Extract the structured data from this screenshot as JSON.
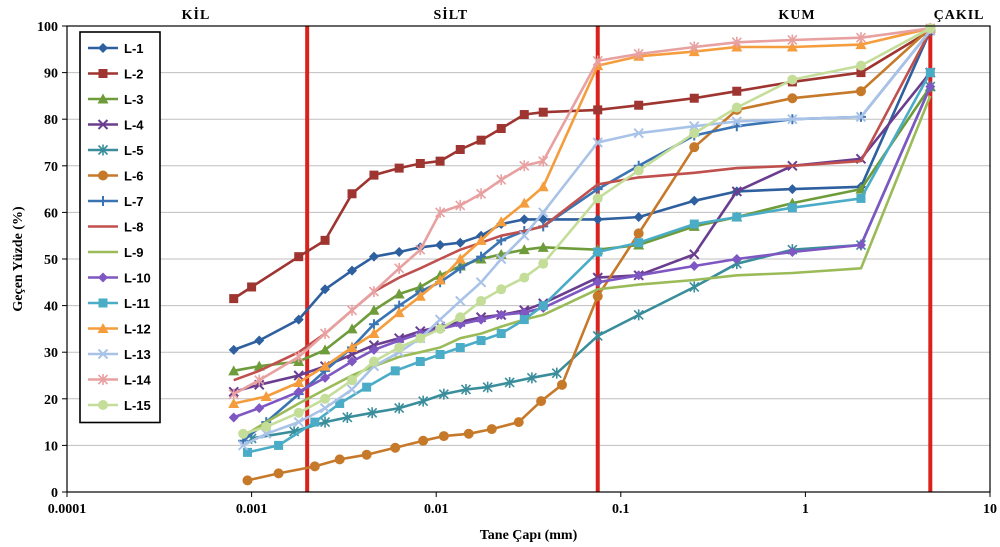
{
  "chart_data": {
    "type": "line",
    "x_scale": "log",
    "xlabel": "Tane Çapı (mm)",
    "ylabel": "Geçen Yüzde (%)",
    "xlim": [
      0.0001,
      10
    ],
    "ylim": [
      0,
      100
    ],
    "x_ticks": [
      "0.0001",
      "0.001",
      "0.01",
      "0.1",
      "1",
      "10"
    ],
    "y_ticks": [
      "0",
      "10",
      "20",
      "30",
      "40",
      "50",
      "60",
      "70",
      "80",
      "90",
      "100"
    ],
    "grid": "horizontal",
    "legend_position": "top-left",
    "zones": [
      {
        "label": "KİL",
        "x_label_pos": 0.0005
      },
      {
        "label": "SİLT",
        "x_label_pos": 0.012
      },
      {
        "label": "KUM",
        "x_label_pos": 0.9
      },
      {
        "label": "ÇAKIL",
        "x_label_pos": 6.8
      }
    ],
    "zone_boundaries": [
      0.002,
      0.075,
      4.75
    ],
    "zone_boundary_color": "#d9221c",
    "series": [
      {
        "name": "L-1",
        "color": "#2e5f9e",
        "marker": "diamond",
        "x": [
          0.0008,
          0.0011,
          0.0018,
          0.0025,
          0.0035,
          0.0046,
          0.0063,
          0.0082,
          0.0105,
          0.0135,
          0.0175,
          0.0225,
          0.03,
          0.038,
          0.075,
          0.125,
          0.25,
          0.425,
          0.85,
          2.0,
          4.75
        ],
        "y": [
          30.5,
          32.5,
          37,
          43.5,
          47.5,
          50.5,
          51.5,
          52.5,
          53,
          53.5,
          55,
          57.5,
          58.5,
          58.5,
          58.5,
          59,
          62.5,
          64.5,
          65,
          65.5,
          99
        ]
      },
      {
        "name": "L-2",
        "color": "#9e3530",
        "marker": "square",
        "x": [
          0.0008,
          0.001,
          0.0018,
          0.0025,
          0.0035,
          0.0046,
          0.0063,
          0.0082,
          0.0105,
          0.0135,
          0.0175,
          0.0225,
          0.03,
          0.038,
          0.075,
          0.125,
          0.25,
          0.425,
          0.85,
          2.0,
          4.75
        ],
        "y": [
          41.5,
          44,
          50.5,
          54,
          64,
          68,
          69.5,
          70.5,
          71,
          73.5,
          75.5,
          78,
          81,
          81.5,
          82,
          83,
          84.5,
          86,
          88,
          90,
          99
        ]
      },
      {
        "name": "L-3",
        "color": "#6e9c3a",
        "marker": "triangle",
        "x": [
          0.0008,
          0.0011,
          0.0018,
          0.0025,
          0.0035,
          0.0046,
          0.0063,
          0.0082,
          0.0105,
          0.0135,
          0.0175,
          0.0225,
          0.03,
          0.038,
          0.075,
          0.125,
          0.25,
          0.425,
          0.85,
          2.0,
          4.75
        ],
        "y": [
          26,
          27,
          28,
          30.5,
          35,
          39,
          42.5,
          44,
          46.5,
          48.5,
          50,
          51,
          52,
          52.5,
          52,
          53,
          57,
          59,
          62,
          65,
          87
        ]
      },
      {
        "name": "L-4",
        "color": "#6a3d8f",
        "marker": "x",
        "x": [
          0.0008,
          0.0011,
          0.0018,
          0.0025,
          0.0035,
          0.0046,
          0.0063,
          0.0082,
          0.0105,
          0.0135,
          0.0175,
          0.0225,
          0.03,
          0.038,
          0.075,
          0.125,
          0.25,
          0.425,
          0.85,
          2.0,
          4.75
        ],
        "y": [
          21.5,
          23,
          25,
          27,
          29.5,
          31.5,
          33,
          34.5,
          35.5,
          36.5,
          37.5,
          38,
          39,
          40.5,
          46,
          46.5,
          51,
          64.5,
          70,
          71.5,
          90
        ]
      },
      {
        "name": "L-5",
        "color": "#3a8e9c",
        "marker": "star",
        "x": [
          0.001,
          0.0017,
          0.0025,
          0.0033,
          0.0045,
          0.0063,
          0.0085,
          0.011,
          0.0145,
          0.019,
          0.025,
          0.033,
          0.045,
          0.075,
          0.125,
          0.25,
          0.425,
          0.85,
          2.0,
          4.75
        ],
        "y": [
          11.5,
          13,
          15,
          16,
          17,
          18,
          19.5,
          21,
          22,
          22.5,
          23.5,
          24.5,
          25.5,
          33.5,
          38,
          44,
          49,
          52,
          53,
          87
        ]
      },
      {
        "name": "L-6",
        "color": "#c7792a",
        "marker": "circle",
        "x": [
          0.00095,
          0.0014,
          0.0022,
          0.003,
          0.0042,
          0.006,
          0.0085,
          0.011,
          0.015,
          0.02,
          0.028,
          0.037,
          0.048,
          0.075,
          0.125,
          0.25,
          0.425,
          0.85,
          2.0,
          4.75
        ],
        "y": [
          2.5,
          4,
          5.5,
          7,
          8,
          9.5,
          11,
          12,
          12.5,
          13.5,
          15,
          19.5,
          23,
          42,
          55.5,
          74,
          82,
          84.5,
          86,
          99.5
        ]
      },
      {
        "name": "L-7",
        "color": "#3b74b3",
        "marker": "plus",
        "x": [
          0.0009,
          0.0012,
          0.0018,
          0.0025,
          0.0035,
          0.0046,
          0.0063,
          0.0082,
          0.0105,
          0.0135,
          0.0175,
          0.0225,
          0.03,
          0.038,
          0.075,
          0.125,
          0.25,
          0.425,
          0.85,
          2.0,
          4.75
        ],
        "y": [
          11,
          15,
          21,
          26,
          31,
          36,
          40,
          43,
          45,
          48,
          50.5,
          54,
          56,
          57,
          65,
          70,
          76.5,
          78.5,
          80,
          80.5,
          99
        ]
      },
      {
        "name": "L-8",
        "color": "#c0504d",
        "marker": "dash",
        "x": [
          0.0008,
          0.0011,
          0.0018,
          0.0025,
          0.0035,
          0.0046,
          0.0063,
          0.0082,
          0.0105,
          0.0135,
          0.0175,
          0.0225,
          0.03,
          0.038,
          0.075,
          0.125,
          0.25,
          0.425,
          0.85,
          2.0,
          4.75
        ],
        "y": [
          24,
          26,
          30,
          34,
          39,
          43,
          46,
          48,
          50,
          52,
          53.5,
          55,
          56,
          57,
          66,
          67.5,
          68.5,
          69.5,
          70,
          71,
          99
        ]
      },
      {
        "name": "L-9",
        "color": "#9bbb59",
        "marker": "dash",
        "x": [
          0.0009,
          0.0012,
          0.0018,
          0.0025,
          0.0035,
          0.0046,
          0.0063,
          0.0082,
          0.0105,
          0.0135,
          0.0175,
          0.0225,
          0.03,
          0.038,
          0.075,
          0.125,
          0.25,
          0.425,
          0.85,
          2.0,
          4.75
        ],
        "y": [
          12,
          15,
          19,
          22,
          25,
          27,
          29,
          30,
          31,
          33,
          34,
          35.5,
          37,
          38,
          43.5,
          44.5,
          45.5,
          46.5,
          47,
          48,
          85
        ]
      },
      {
        "name": "L-10",
        "color": "#7e57c2",
        "marker": "diamond",
        "x": [
          0.0008,
          0.0011,
          0.0018,
          0.0025,
          0.0035,
          0.0046,
          0.0063,
          0.0082,
          0.0105,
          0.0135,
          0.0175,
          0.0225,
          0.03,
          0.038,
          0.075,
          0.125,
          0.25,
          0.425,
          0.85,
          2.0,
          4.75
        ],
        "y": [
          16,
          18,
          21.5,
          24.5,
          28,
          30.5,
          32.5,
          34,
          35,
          36,
          37,
          38,
          38.5,
          39.5,
          45,
          46.5,
          48.5,
          50,
          51.5,
          53,
          87
        ]
      },
      {
        "name": "L-11",
        "color": "#4aacc6",
        "marker": "square",
        "x": [
          0.00095,
          0.0014,
          0.0022,
          0.003,
          0.0042,
          0.006,
          0.0082,
          0.0105,
          0.0135,
          0.0175,
          0.0225,
          0.03,
          0.038,
          0.075,
          0.125,
          0.25,
          0.425,
          0.85,
          2.0,
          4.75
        ],
        "y": [
          8.5,
          10,
          15,
          19,
          22.5,
          26,
          28,
          29.5,
          31,
          32.5,
          34,
          37,
          40,
          51.5,
          53.5,
          57.5,
          59,
          61,
          63,
          90
        ]
      },
      {
        "name": "L-12",
        "color": "#f59d3d",
        "marker": "triangle",
        "x": [
          0.0008,
          0.0012,
          0.0018,
          0.0025,
          0.0035,
          0.0046,
          0.0063,
          0.0082,
          0.0105,
          0.0135,
          0.0175,
          0.0225,
          0.03,
          0.038,
          0.075,
          0.125,
          0.25,
          0.425,
          0.85,
          2.0,
          4.75
        ],
        "y": [
          19,
          20.5,
          23.5,
          27,
          31,
          34,
          38.5,
          42,
          45.5,
          50,
          54,
          58,
          62,
          65.5,
          91.5,
          93.5,
          94.5,
          95.5,
          95.5,
          96,
          99.5
        ]
      },
      {
        "name": "L-13",
        "color": "#a9c3e8",
        "marker": "x",
        "x": [
          0.0009,
          0.0012,
          0.0018,
          0.0025,
          0.0035,
          0.0046,
          0.0063,
          0.0082,
          0.0105,
          0.0135,
          0.0175,
          0.0225,
          0.03,
          0.038,
          0.075,
          0.125,
          0.25,
          0.425,
          0.85,
          2.0,
          4.75
        ],
        "y": [
          10,
          12.5,
          15,
          18,
          22,
          27,
          30,
          33,
          37,
          41,
          45,
          50,
          55,
          60,
          75,
          77,
          78.5,
          79.5,
          80,
          80.5,
          99
        ]
      },
      {
        "name": "L-14",
        "color": "#e8a0a0",
        "marker": "star",
        "x": [
          0.0008,
          0.0011,
          0.0018,
          0.0025,
          0.0035,
          0.0046,
          0.0063,
          0.0082,
          0.0105,
          0.0135,
          0.0175,
          0.0225,
          0.03,
          0.038,
          0.075,
          0.125,
          0.25,
          0.425,
          0.85,
          2.0,
          4.75
        ],
        "y": [
          21,
          24,
          29,
          34,
          39,
          43,
          48,
          52,
          60,
          61.5,
          64,
          67,
          70,
          71,
          92.5,
          94,
          95.5,
          96.5,
          97,
          97.5,
          99.5
        ]
      },
      {
        "name": "L-15",
        "color": "#c4de9a",
        "marker": "circle",
        "x": [
          0.0009,
          0.0012,
          0.0018,
          0.0025,
          0.0035,
          0.0046,
          0.0063,
          0.0082,
          0.0105,
          0.0135,
          0.0175,
          0.0225,
          0.03,
          0.038,
          0.075,
          0.125,
          0.25,
          0.425,
          0.85,
          2.0,
          4.75
        ],
        "y": [
          12.5,
          14,
          17,
          20,
          24,
          28,
          31,
          33,
          35,
          37.5,
          41,
          43.5,
          46,
          49,
          63,
          69,
          77,
          82.5,
          88.5,
          91.5,
          99.5
        ]
      }
    ]
  }
}
